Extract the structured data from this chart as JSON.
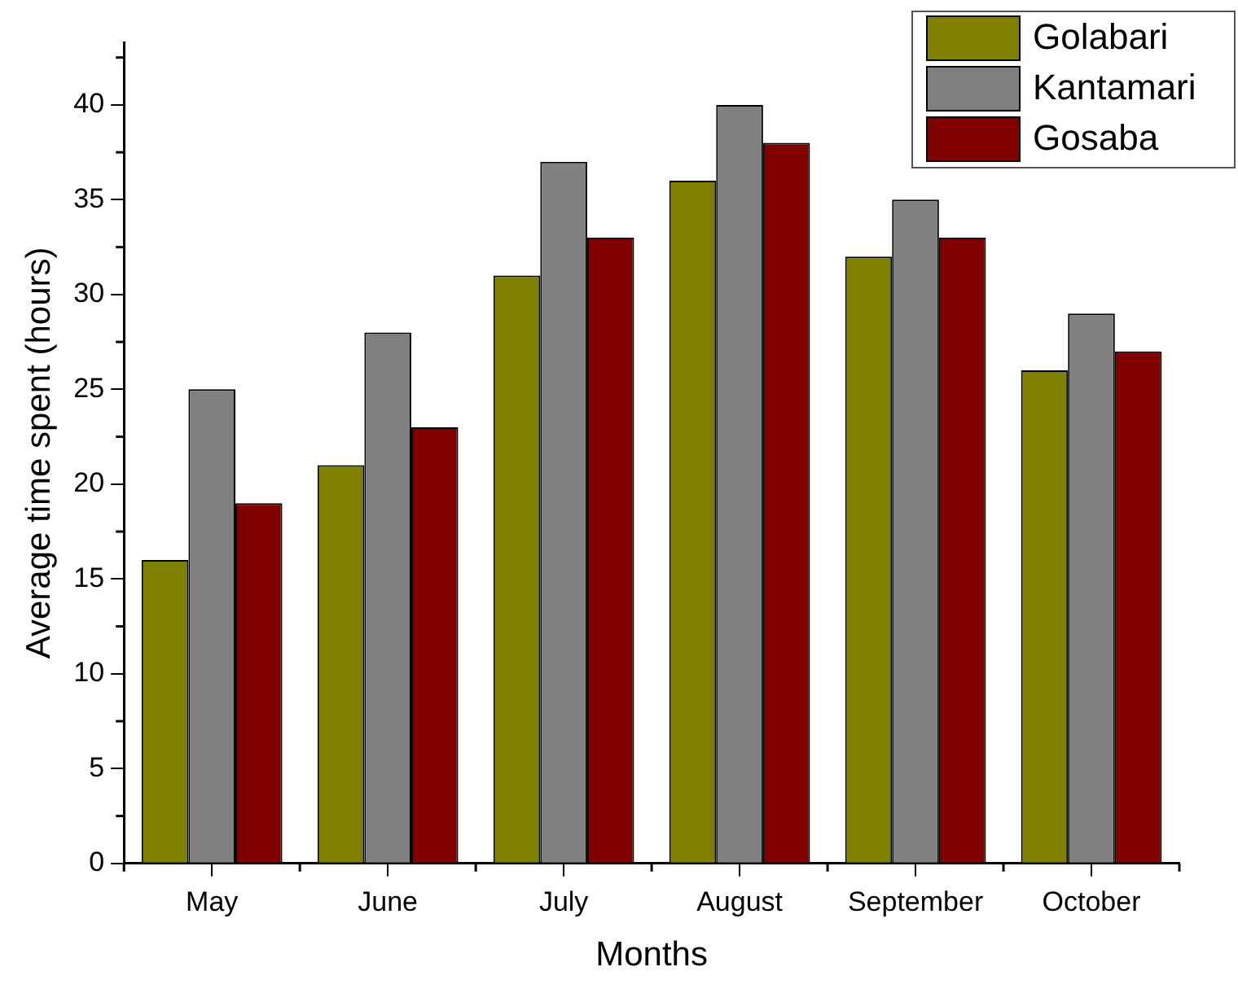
{
  "chart_data": {
    "type": "bar",
    "xlabel": "Months",
    "ylabel": "Average time spent (hours)",
    "categories": [
      "May",
      "June",
      "July",
      "August",
      "September",
      "October"
    ],
    "series": [
      {
        "name": "Golabari",
        "color": "#808000",
        "values": [
          16,
          21,
          31,
          36,
          32,
          26
        ]
      },
      {
        "name": "Kantamari",
        "color": "#808080",
        "values": [
          25,
          28,
          37,
          40,
          35,
          29
        ]
      },
      {
        "name": "Gosaba",
        "color": "#800000",
        "values": [
          19,
          23,
          33,
          38,
          33,
          27
        ]
      }
    ],
    "ylim": [
      0,
      43.3
    ],
    "yticks": [
      0,
      5,
      10,
      15,
      20,
      25,
      30,
      35,
      40
    ],
    "grid": false,
    "legend": "top right"
  }
}
